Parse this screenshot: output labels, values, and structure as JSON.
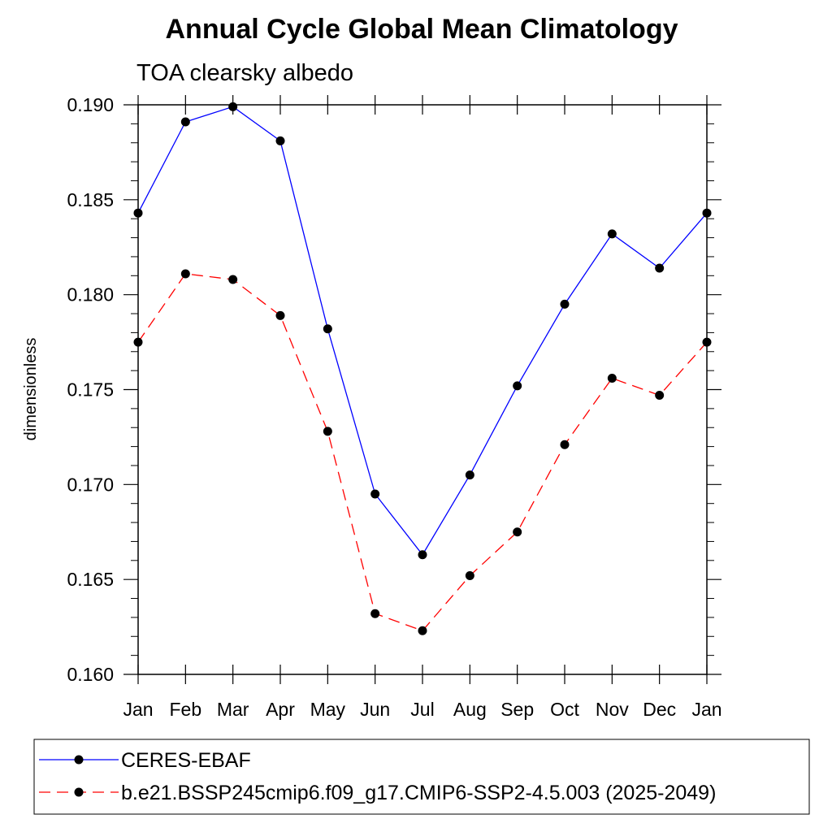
{
  "chart_data": {
    "type": "line",
    "title": "Annual Cycle Global Mean Climatology",
    "subtitle": "TOA clearsky albedo",
    "ylabel": "dimensionless",
    "xlabel": "",
    "categories": [
      "Jan",
      "Feb",
      "Mar",
      "Apr",
      "May",
      "Jun",
      "Jul",
      "Aug",
      "Sep",
      "Oct",
      "Nov",
      "Dec",
      "Jan"
    ],
    "ylim": [
      0.16,
      0.19
    ],
    "yticks": [
      "0.160",
      "0.165",
      "0.170",
      "0.175",
      "0.180",
      "0.185",
      "0.190"
    ],
    "grid": false,
    "legend_position": "bottom",
    "series": [
      {
        "name": "CERES-EBAF",
        "color": "#0000ff",
        "line_style": "solid",
        "marker": "filled-circle",
        "values": [
          0.1843,
          0.1891,
          0.1899,
          0.1881,
          0.1782,
          0.1695,
          0.1663,
          0.1705,
          0.1752,
          0.1795,
          0.1832,
          0.1814,
          0.1843
        ]
      },
      {
        "name": "b.e21.BSSP245cmip6.f09_g17.CMIP6-SSP2-4.5.003 (2025-2049)",
        "color": "#ff0000",
        "line_style": "dashed",
        "marker": "filled-circle",
        "values": [
          0.1775,
          0.1811,
          0.1808,
          0.1789,
          0.1728,
          0.1632,
          0.1623,
          0.1652,
          0.1675,
          0.1721,
          0.1756,
          0.1747,
          0.1775
        ]
      }
    ]
  }
}
